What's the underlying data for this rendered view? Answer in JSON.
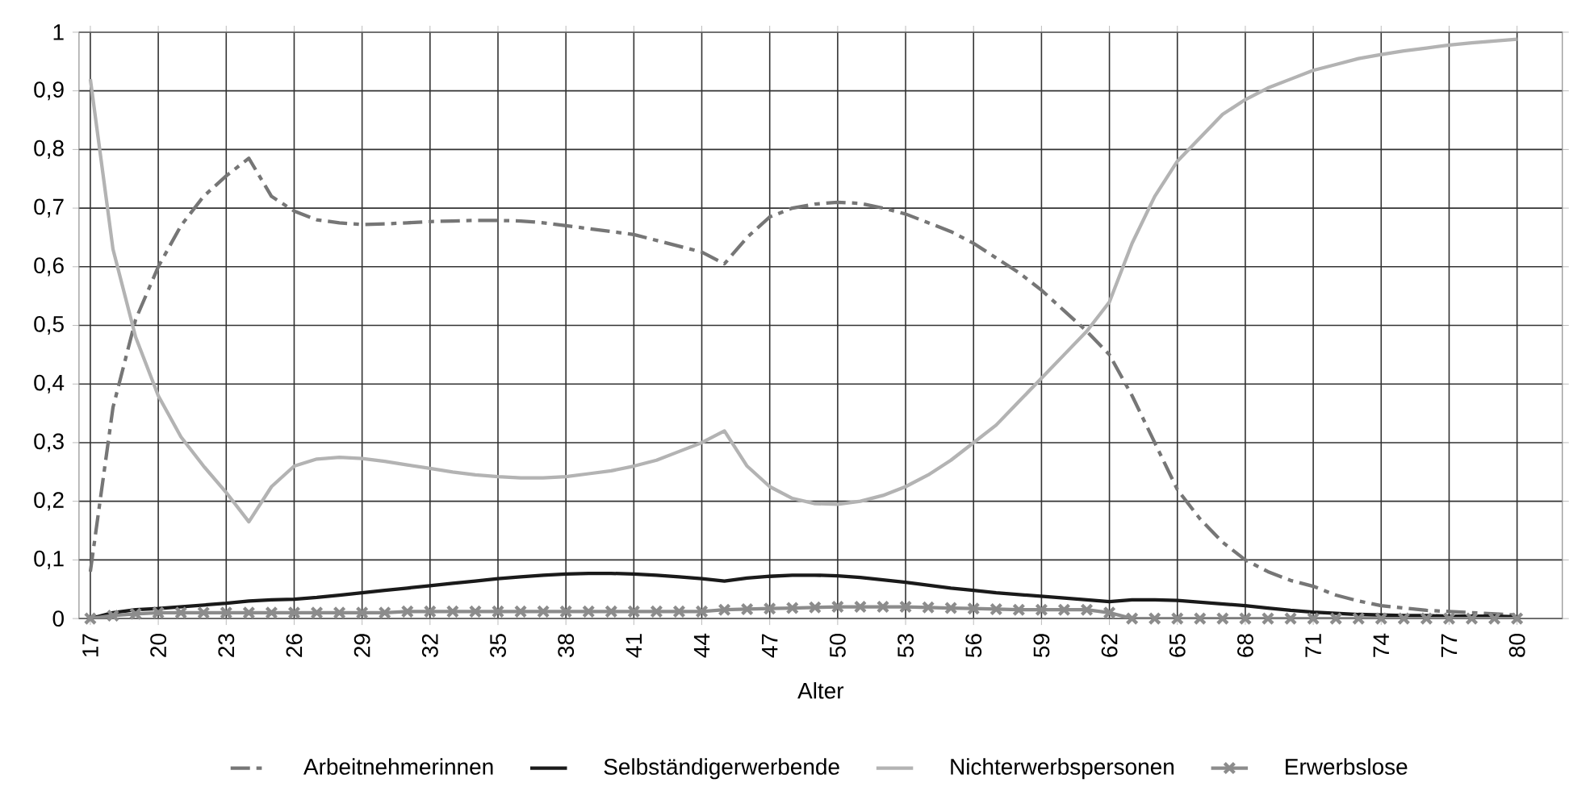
{
  "chart_data": {
    "type": "line",
    "xlabel": "Alter",
    "x": [
      17,
      18,
      19,
      20,
      21,
      22,
      23,
      24,
      25,
      26,
      27,
      28,
      29,
      30,
      31,
      32,
      33,
      34,
      35,
      36,
      37,
      38,
      39,
      40,
      41,
      42,
      43,
      44,
      45,
      46,
      47,
      48,
      49,
      50,
      51,
      52,
      53,
      54,
      55,
      56,
      57,
      58,
      59,
      60,
      61,
      62,
      63,
      64,
      65,
      66,
      67,
      68,
      69,
      70,
      71,
      72,
      73,
      74,
      75,
      76,
      77,
      78,
      79,
      80
    ],
    "xlim": [
      16.5,
      82
    ],
    "xticks": [
      17,
      20,
      23,
      26,
      29,
      32,
      35,
      38,
      41,
      44,
      47,
      50,
      53,
      56,
      59,
      62,
      65,
      68,
      71,
      74,
      77,
      80
    ],
    "ylim": [
      0,
      1
    ],
    "yticks": [
      0,
      {
        "value": 0.1,
        "label": "0,1"
      },
      {
        "value": 0.2,
        "label": "0,2"
      },
      {
        "value": 0.3,
        "label": "0,3"
      },
      {
        "value": 0.4,
        "label": "0,4"
      },
      {
        "value": 0.5,
        "label": "0,5"
      },
      {
        "value": 0.6,
        "label": "0,6"
      },
      {
        "value": 0.7,
        "label": "0,7"
      },
      {
        "value": 0.8,
        "label": "0,8"
      },
      {
        "value": 0.9,
        "label": "0,9"
      },
      1
    ],
    "grid": true,
    "legend": "bottom",
    "series": [
      {
        "name": "Arbeitnehmerinnen",
        "color": "#767676",
        "line_style": "dashdot",
        "values": [
          0.08,
          0.36,
          0.51,
          0.6,
          0.67,
          0.72,
          0.755,
          0.785,
          0.72,
          0.695,
          0.68,
          0.675,
          0.672,
          0.673,
          0.675,
          0.677,
          0.678,
          0.679,
          0.679,
          0.678,
          0.675,
          0.67,
          0.665,
          0.66,
          0.655,
          0.645,
          0.635,
          0.625,
          0.605,
          0.65,
          0.685,
          0.7,
          0.707,
          0.71,
          0.708,
          0.7,
          0.69,
          0.675,
          0.66,
          0.64,
          0.615,
          0.59,
          0.56,
          0.525,
          0.49,
          0.45,
          0.38,
          0.3,
          0.22,
          0.17,
          0.13,
          0.1,
          0.08,
          0.065,
          0.055,
          0.04,
          0.03,
          0.022,
          0.018,
          0.014,
          0.012,
          0.01,
          0.008,
          0.006
        ]
      },
      {
        "name": "Selbständigerwerbende",
        "color": "#1a1a1a",
        "line_style": "solid",
        "values": [
          0,
          0.01,
          0.015,
          0.017,
          0.02,
          0.023,
          0.026,
          0.03,
          0.032,
          0.033,
          0.036,
          0.04,
          0.044,
          0.048,
          0.052,
          0.056,
          0.06,
          0.064,
          0.068,
          0.071,
          0.074,
          0.076,
          0.077,
          0.077,
          0.076,
          0.074,
          0.071,
          0.068,
          0.064,
          0.069,
          0.072,
          0.074,
          0.074,
          0.073,
          0.07,
          0.066,
          0.062,
          0.057,
          0.052,
          0.048,
          0.044,
          0.041,
          0.038,
          0.035,
          0.032,
          0.029,
          0.032,
          0.032,
          0.031,
          0.028,
          0.025,
          0.022,
          0.018,
          0.014,
          0.011,
          0.009,
          0.007,
          0.006,
          0.005,
          0.005,
          0.004,
          0.004,
          0.004,
          0.003
        ]
      },
      {
        "name": "Nichterwerbspersonen",
        "color": "#b3b3b3",
        "line_style": "solid",
        "values": [
          0.92,
          0.63,
          0.48,
          0.38,
          0.31,
          0.26,
          0.215,
          0.165,
          0.225,
          0.26,
          0.272,
          0.275,
          0.273,
          0.268,
          0.262,
          0.256,
          0.25,
          0.245,
          0.242,
          0.24,
          0.24,
          0.242,
          0.247,
          0.252,
          0.26,
          0.27,
          0.285,
          0.3,
          0.32,
          0.26,
          0.225,
          0.205,
          0.196,
          0.195,
          0.2,
          0.21,
          0.225,
          0.245,
          0.27,
          0.3,
          0.33,
          0.37,
          0.41,
          0.45,
          0.49,
          0.54,
          0.64,
          0.72,
          0.78,
          0.82,
          0.86,
          0.885,
          0.905,
          0.92,
          0.935,
          0.945,
          0.955,
          0.962,
          0.968,
          0.973,
          0.978,
          0.982,
          0.985,
          0.988
        ]
      },
      {
        "name": "Erwerbslose",
        "color": "#8c8c8c",
        "line_style": "solid",
        "marker": "cross",
        "values": [
          0,
          0.005,
          0.008,
          0.01,
          0.01,
          0.01,
          0.01,
          0.01,
          0.01,
          0.01,
          0.01,
          0.01,
          0.01,
          0.01,
          0.012,
          0.012,
          0.012,
          0.012,
          0.012,
          0.012,
          0.012,
          0.012,
          0.012,
          0.012,
          0.012,
          0.012,
          0.012,
          0.012,
          0.015,
          0.016,
          0.017,
          0.018,
          0.019,
          0.02,
          0.02,
          0.02,
          0.02,
          0.019,
          0.018,
          0.017,
          0.016,
          0.015,
          0.015,
          0.015,
          0.015,
          0.01,
          0,
          0,
          0,
          0,
          0,
          0,
          0,
          0,
          0,
          0,
          0,
          0,
          0,
          0,
          0,
          0,
          0,
          0
        ]
      }
    ]
  }
}
